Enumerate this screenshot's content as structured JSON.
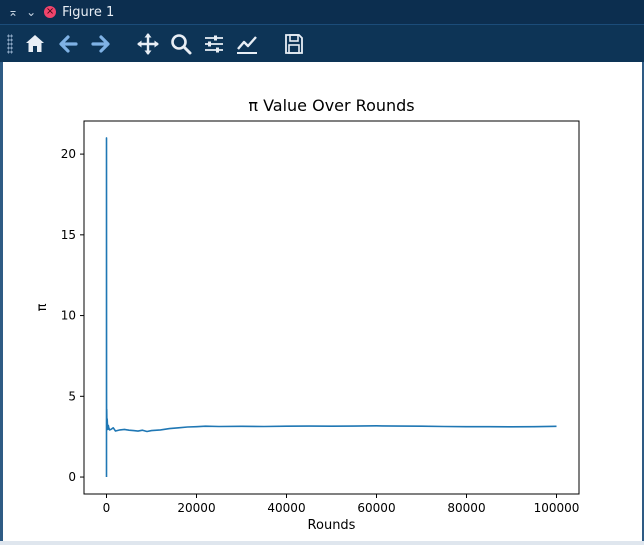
{
  "window": {
    "title": "Figure 1",
    "controls": [
      "collapse",
      "minimize",
      "close"
    ]
  },
  "toolbar": {
    "tools": [
      {
        "name": "home",
        "icon": "home-icon"
      },
      {
        "name": "back",
        "icon": "arrow-left-icon"
      },
      {
        "name": "forward",
        "icon": "arrow-right-icon"
      },
      {
        "name": "pan",
        "icon": "move-icon"
      },
      {
        "name": "zoom",
        "icon": "zoom-icon"
      },
      {
        "name": "subplots",
        "icon": "sliders-icon"
      },
      {
        "name": "customize",
        "icon": "line-chart-icon"
      },
      {
        "name": "save",
        "icon": "save-icon"
      }
    ]
  },
  "colors": {
    "titlebar": "#0c2e4f",
    "toolbar": "#0d3456",
    "line": "#1f77b4"
  },
  "chart_data": {
    "type": "line",
    "title": "π Value Over Rounds",
    "xlabel": "Rounds",
    "ylabel": "π",
    "xlim": [
      -5000,
      105000
    ],
    "ylim": [
      -1.05,
      22.05
    ],
    "xticks": [
      0,
      20000,
      40000,
      60000,
      80000,
      100000
    ],
    "yticks": [
      0,
      5,
      10,
      15,
      20
    ],
    "grid": false,
    "series": [
      {
        "color": "#1f77b4",
        "x": [
          0,
          1,
          10,
          20,
          50,
          100,
          150,
          200,
          300,
          400,
          500,
          700,
          1000,
          1500,
          2000,
          3000,
          4000,
          5000,
          6000,
          7000,
          8000,
          9000,
          10000,
          12000,
          14000,
          16000,
          18000,
          20000,
          22000,
          25000,
          30000,
          35000,
          40000,
          45000,
          50000,
          55000,
          60000,
          65000,
          70000,
          75000,
          80000,
          85000,
          90000,
          95000,
          100000
        ],
        "y": [
          0.0,
          21.0,
          5.3,
          3.0,
          4.2,
          3.1,
          3.6,
          3.3,
          2.95,
          3.2,
          3.05,
          2.92,
          2.95,
          3.05,
          2.85,
          2.92,
          2.95,
          2.9,
          2.88,
          2.85,
          2.9,
          2.82,
          2.88,
          2.92,
          3.0,
          3.05,
          3.1,
          3.12,
          3.15,
          3.13,
          3.14,
          3.13,
          3.15,
          3.16,
          3.15,
          3.16,
          3.17,
          3.16,
          3.15,
          3.13,
          3.12,
          3.12,
          3.11,
          3.12,
          3.14
        ]
      }
    ]
  }
}
